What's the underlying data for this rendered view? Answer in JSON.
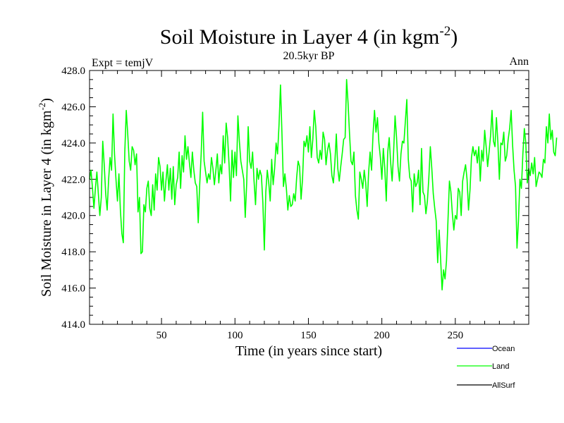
{
  "header": {
    "title_main": "Soil Moisture in Layer 4 (in kgm",
    "title_sup": "-2",
    "title_close": ")",
    "subtitle": "20.5kyr BP",
    "left_label": "Expt = temjV",
    "right_label": "Ann"
  },
  "axes": {
    "ylabel_main": "Soil Moisture in Layer 4 (in kgm",
    "ylabel_sup": "-2",
    "ylabel_close": ")",
    "xlabel": "Time (in years since start)"
  },
  "legend": {
    "items": [
      {
        "label": "Ocean",
        "color": "#0000ff"
      },
      {
        "label": "Land",
        "color": "#00ff00"
      },
      {
        "label": "AllSurf",
        "color": "#000000"
      }
    ]
  },
  "chart_data": {
    "type": "line",
    "title": "Soil Moisture in Layer 4 (in kgm-2)",
    "subtitle": "20.5kyr BP",
    "xlabel": "Time (in years since start)",
    "ylabel": "Soil Moisture in Layer 4 (in kgm-2)",
    "xlim": [
      1,
      300
    ],
    "ylim": [
      414,
      428
    ],
    "x_ticks": [
      50,
      100,
      150,
      200,
      250
    ],
    "x_minor_step": 10,
    "y_ticks": [
      414.0,
      416.0,
      418.0,
      420.0,
      422.0,
      424.0,
      426.0,
      428.0
    ],
    "y_tick_labels": [
      "414.0",
      "416.0",
      "418.0",
      "420.0",
      "422.0",
      "424.0",
      "426.0",
      "428.0"
    ],
    "y_minor_step": 0.5,
    "x_start": 1,
    "series": [
      {
        "name": "Land",
        "color": "#00ff00",
        "values": [
          422.0,
          422.5,
          421.5,
          420.4,
          421.5,
          422.4,
          421.2,
          420.0,
          421.0,
          424.1,
          422.8,
          421.2,
          420.3,
          422.0,
          423.2,
          422.5,
          425.6,
          423.4,
          422.0,
          420.8,
          422.3,
          420.3,
          419.0,
          418.5,
          423.5,
          425.8,
          424.5,
          423.0,
          422.5,
          423.8,
          423.6,
          422.8,
          423.4,
          420.2,
          421.0,
          417.9,
          418.0,
          420.6,
          420.2,
          421.5,
          421.9,
          420.4,
          420.0,
          421.7,
          420.3,
          422.3,
          421.4,
          423.2,
          422.7,
          421.4,
          422.4,
          420.8,
          421.9,
          422.8,
          421.4,
          422.6,
          420.9,
          422.7,
          420.6,
          421.7,
          422.1,
          423.5,
          421.5,
          423.3,
          422.4,
          424.4,
          423.1,
          423.8,
          422.9,
          422.1,
          423.5,
          422.5,
          421.8,
          421.6,
          419.6,
          421.7,
          423.4,
          425.7,
          423.0,
          422.4,
          421.8,
          422.3,
          422.0,
          423.2,
          422.6,
          421.7,
          422.5,
          423.4,
          421.8,
          422.8,
          422.3,
          424.4,
          422.9,
          425.1,
          424.3,
          422.8,
          420.8,
          423.6,
          422.1,
          423.5,
          422.2,
          425.5,
          424.1,
          423.0,
          422.5,
          422.0,
          419.9,
          421.8,
          424.9,
          423.0,
          422.6,
          423.5,
          421.9,
          420.6,
          422.6,
          422.0,
          422.5,
          422.2,
          420.7,
          418.1,
          421.3,
          422.5,
          421.8,
          420.8,
          423.1,
          421.7,
          422.6,
          424.0,
          423.4,
          425.0,
          427.2,
          424.5,
          421.6,
          422.3,
          421.5,
          420.3,
          421.1,
          420.5,
          420.6,
          421.2,
          420.8,
          422.1,
          423.0,
          422.7,
          420.9,
          422.0,
          424.1,
          423.8,
          424.4,
          423.5,
          424.9,
          423.2,
          424.2,
          425.8,
          424.9,
          423.2,
          422.9,
          423.6,
          423.1,
          424.6,
          424.2,
          422.8,
          423.6,
          424.0,
          423.4,
          422.2,
          421.8,
          422.9,
          424.5,
          422.6,
          421.9,
          422.7,
          423.4,
          424.2,
          424.3,
          427.5,
          426.2,
          424.5,
          423.0,
          422.8,
          423.5,
          421.1,
          420.3,
          419.8,
          422.4,
          422.0,
          421.5,
          422.5,
          421.8,
          420.5,
          422.4,
          423.5,
          422.5,
          424.5,
          425.8,
          424.6,
          425.4,
          424.0,
          423.2,
          422.0,
          423.7,
          422.6,
          420.8,
          423.5,
          424.3,
          422.9,
          421.9,
          423.5,
          425.5,
          424.3,
          422.7,
          421.9,
          423.4,
          424.1,
          424.0,
          425.2,
          426.4,
          423.1,
          422.1,
          421.9,
          420.2,
          422.3,
          421.6,
          421.8,
          422.5,
          420.6,
          423.7,
          421.3,
          421.1,
          420.1,
          420.8,
          422.1,
          423.8,
          422.6,
          421.2,
          420.4,
          419.7,
          417.4,
          419.2,
          417.6,
          415.9,
          417.0,
          416.5,
          417.5,
          419.7,
          421.9,
          421.3,
          420.1,
          419.2,
          420.0,
          419.8,
          421.5,
          421.3,
          420.0,
          421.9,
          422.4,
          422.8,
          422.0,
          420.3,
          421.4,
          423.2,
          423.8,
          423.3,
          423.6,
          422.9,
          423.8,
          421.9,
          423.6,
          423.0,
          424.7,
          423.8,
          422.7,
          423.5,
          424.4,
          425.8,
          424.1,
          423.8,
          425.4,
          424.0,
          422.0,
          424.0,
          423.9,
          424.6,
          423.0,
          423.3,
          424.2,
          424.8,
          425.8,
          423.9,
          422.5,
          421.6,
          418.2,
          419.7,
          422.0,
          421.5,
          423.4,
          424.8,
          424.0,
          421.8,
          422.6,
          422.2,
          422.9,
          422.3,
          423.2,
          421.6,
          422.0,
          422.4,
          422.3,
          422.1,
          423.1,
          422.9,
          424.9,
          424.0,
          425.6,
          424.2,
          424.7,
          423.5,
          423.3,
          424.3
        ]
      }
    ],
    "legend_position": "bottom-right"
  }
}
